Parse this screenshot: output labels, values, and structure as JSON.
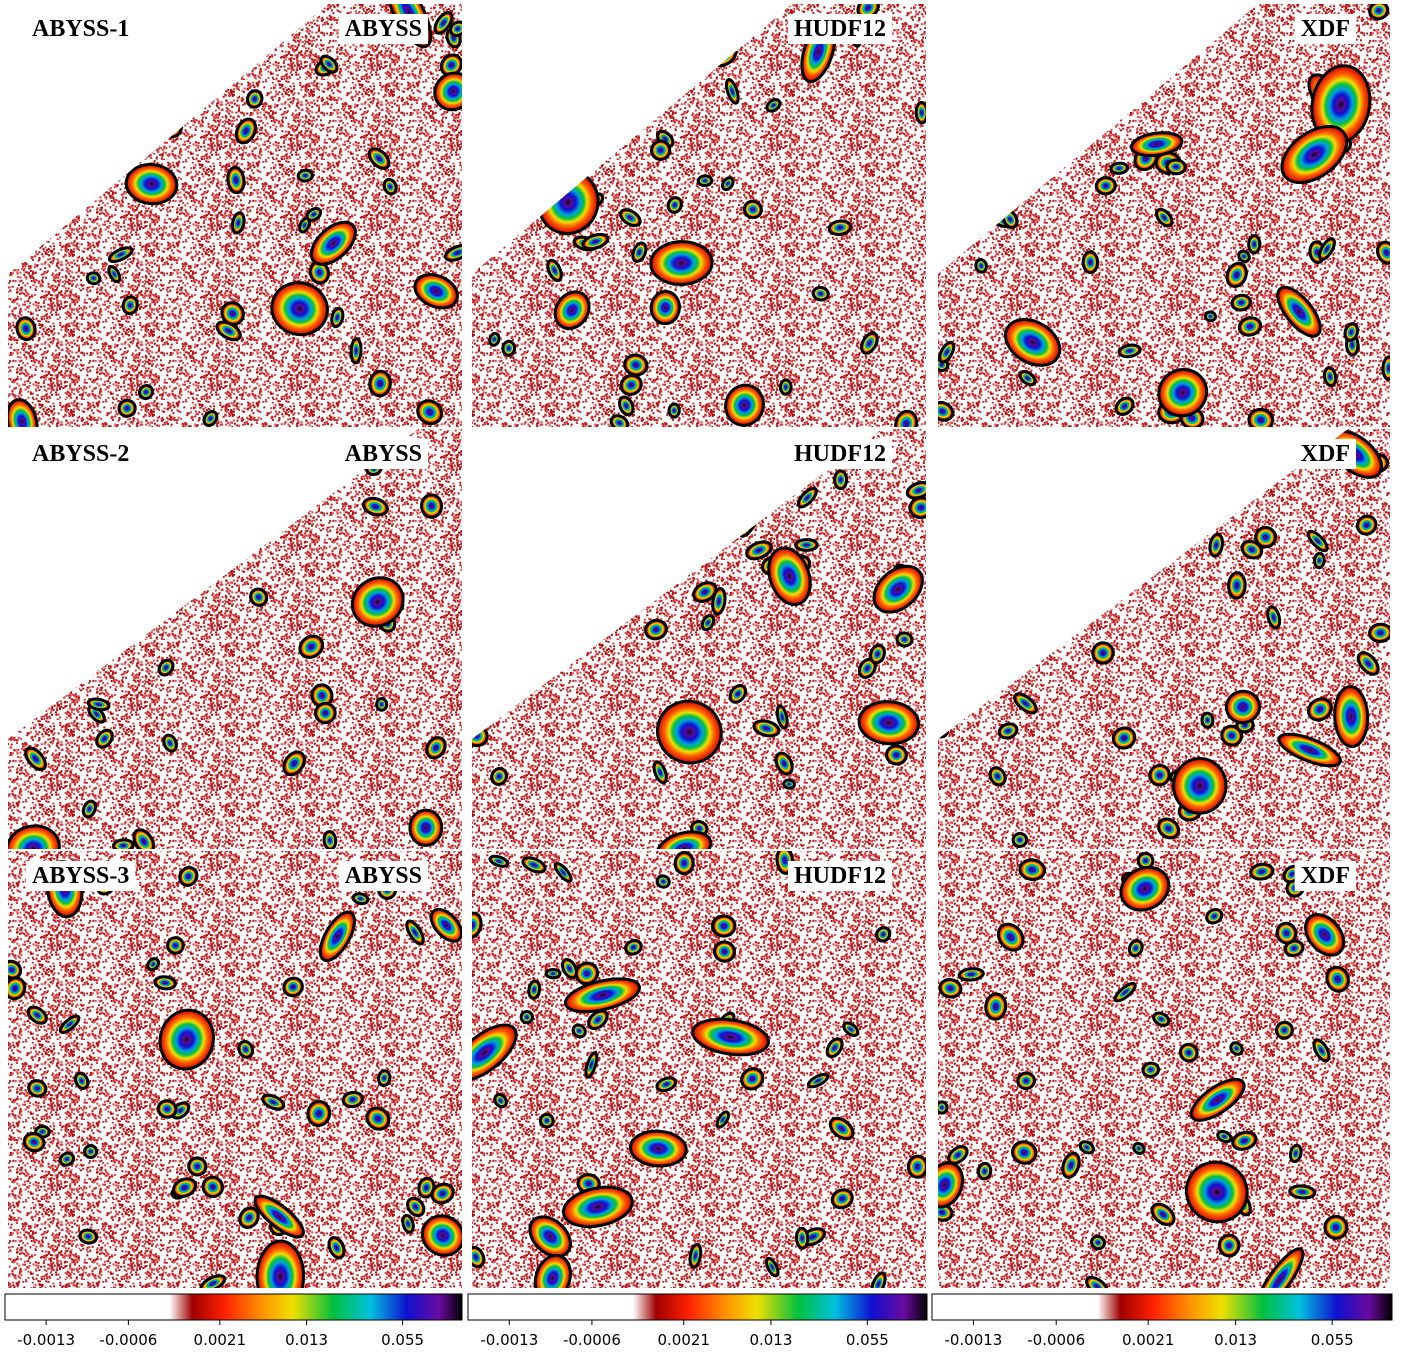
{
  "panels": {
    "rows": [
      {
        "label": "ABYSS-1",
        "columns": [
          "ABYSS",
          "HUDF12",
          "XDF"
        ]
      },
      {
        "label": "ABYSS-2",
        "columns": [
          "ABYSS",
          "HUDF12",
          "XDF"
        ]
      },
      {
        "label": "ABYSS-3",
        "columns": [
          "ABYSS",
          "HUDF12",
          "XDF"
        ]
      }
    ]
  },
  "colorbars": [
    {
      "ticks": [
        "-0.0013",
        "-0.0006",
        "0.0021",
        "0.013",
        "0.055"
      ]
    },
    {
      "ticks": [
        "-0.0013",
        "-0.0006",
        "0.0021",
        "0.013",
        "0.055"
      ]
    },
    {
      "ticks": [
        "-0.0013",
        "-0.0006",
        "0.0021",
        "0.013",
        "0.055"
      ]
    }
  ]
}
